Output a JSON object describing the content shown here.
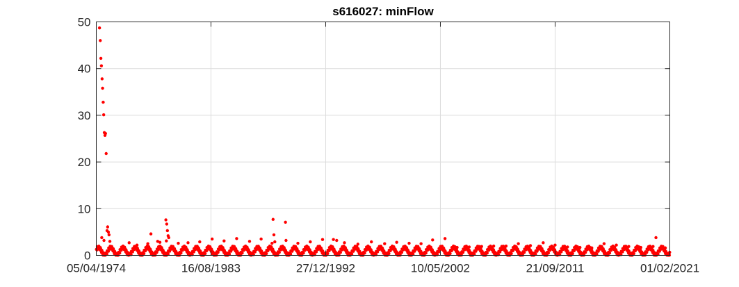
{
  "chart_data": {
    "type": "scatter",
    "title": "s616027: minFlow",
    "xlabel": "",
    "ylabel": "",
    "x_axis_type": "date",
    "xlim": [
      "1974-04-05",
      "2021-02-01"
    ],
    "ylim": [
      0,
      50
    ],
    "x_ticks": [
      "05/04/1974",
      "16/08/1983",
      "27/12/1992",
      "10/05/2002",
      "21/09/2011",
      "01/02/2021"
    ],
    "y_ticks": [
      0,
      10,
      20,
      30,
      40,
      50
    ],
    "grid": true,
    "legend": "none",
    "marker_color": "#ff0000",
    "series": [
      {
        "points": [
          [
            "1974-07-10",
            48.7
          ],
          [
            "1974-08-02",
            46.0
          ],
          [
            "1974-08-20",
            42.2
          ],
          [
            "1974-09-05",
            40.6
          ],
          [
            "1974-09-25",
            37.8
          ],
          [
            "1974-10-10",
            35.8
          ],
          [
            "1974-10-28",
            32.8
          ],
          [
            "1974-11-12",
            30.1
          ],
          [
            "1974-12-01",
            26.3
          ],
          [
            "1974-12-20",
            25.7
          ],
          [
            "1975-01-05",
            26.1
          ],
          [
            "1975-01-25",
            21.8
          ],
          [
            "1975-03-10",
            6.1
          ],
          [
            "1975-02-20",
            5.3
          ],
          [
            "1975-04-01",
            5.0
          ],
          [
            "1975-04-20",
            4.4
          ],
          [
            "1974-09-15",
            3.8
          ],
          [
            "1974-11-20",
            3.2
          ],
          [
            "1975-05-15",
            3.0
          ],
          [
            "1976-12-10",
            2.7
          ],
          [
            "1977-08-01",
            2.2
          ],
          [
            "1978-06-20",
            2.5
          ],
          [
            "1978-09-20",
            4.6
          ],
          [
            "1979-04-10",
            3.0
          ],
          [
            "1979-06-15",
            2.8
          ],
          [
            "1979-12-10",
            7.6
          ],
          [
            "1980-01-05",
            6.7
          ],
          [
            "1980-01-25",
            5.3
          ],
          [
            "1980-02-15",
            4.2
          ],
          [
            "1980-03-05",
            3.8
          ],
          [
            "1979-12-25",
            3.1
          ],
          [
            "1980-12-15",
            2.6
          ],
          [
            "1981-10-01",
            2.7
          ],
          [
            "1982-09-15",
            2.9
          ],
          [
            "1983-09-20",
            3.5
          ],
          [
            "1984-09-10",
            3.1
          ],
          [
            "1985-09-20",
            3.6
          ],
          [
            "1986-10-10",
            3.0
          ],
          [
            "1987-09-20",
            3.5
          ],
          [
            "1988-08-10",
            2.6
          ],
          [
            "1988-09-10",
            7.7
          ],
          [
            "1988-10-05",
            4.4
          ],
          [
            "1988-11-01",
            2.9
          ],
          [
            "1989-09-15",
            7.1
          ],
          [
            "1989-10-01",
            3.2
          ],
          [
            "1990-09-20",
            2.6
          ],
          [
            "1991-09-25",
            2.9
          ],
          [
            "1992-09-25",
            3.4
          ],
          [
            "1993-08-15",
            3.4
          ],
          [
            "1993-11-20",
            3.2
          ],
          [
            "1994-07-10",
            2.7
          ],
          [
            "1995-08-15",
            2.4
          ],
          [
            "1996-09-20",
            2.9
          ],
          [
            "1997-10-20",
            2.5
          ],
          [
            "1998-10-15",
            2.8
          ],
          [
            "1999-10-20",
            2.6
          ],
          [
            "2000-10-10",
            2.5
          ],
          [
            "2001-09-20",
            3.3
          ],
          [
            "2002-09-25",
            3.6
          ],
          [
            "2003-09-20",
            1.7
          ],
          [
            "2004-09-15",
            1.8
          ],
          [
            "2005-09-20",
            1.9
          ],
          [
            "2006-09-15",
            2.0
          ],
          [
            "2007-09-20",
            2.0
          ],
          [
            "2008-09-20",
            2.5
          ],
          [
            "2009-09-15",
            2.1
          ],
          [
            "2010-10-01",
            2.7
          ],
          [
            "2011-09-20",
            2.2
          ],
          [
            "2012-09-25",
            1.8
          ],
          [
            "2013-10-01",
            1.7
          ],
          [
            "2014-09-20",
            1.6
          ],
          [
            "2015-09-20",
            2.5
          ],
          [
            "2016-09-20",
            2.2
          ],
          [
            "2017-09-25",
            1.9
          ],
          [
            "2018-09-20",
            1.7
          ],
          [
            "2019-09-20",
            1.9
          ],
          [
            "2019-12-15",
            3.8
          ],
          [
            "2020-09-20",
            1.6
          ]
        ]
      }
    ]
  }
}
